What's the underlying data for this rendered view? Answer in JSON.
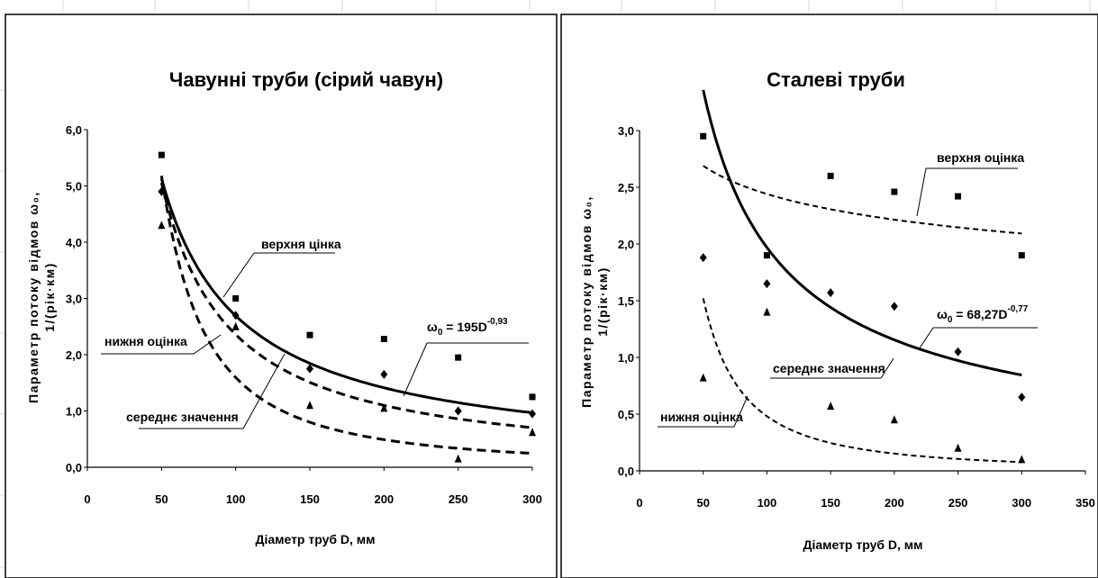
{
  "chart_data": [
    {
      "type": "scatter",
      "title": "Чавунні труби (сірий чавун)",
      "xlabel": "Діаметр труб D, мм",
      "ylabel": [
        "Параметр потоку відмов ω₀,",
        "1/(рік·км)"
      ],
      "xlim": [
        0,
        300
      ],
      "ylim": [
        0,
        6
      ],
      "xticks": [
        0,
        50,
        100,
        150,
        200,
        250,
        300
      ],
      "xtick_labels": [
        "0",
        "50",
        "100",
        "150",
        "200",
        "250",
        "300"
      ],
      "yticks": [
        0,
        1,
        2,
        3,
        4,
        5,
        6
      ],
      "ytick_labels": [
        "0,0",
        "1,0",
        "2,0",
        "3,0",
        "4,0",
        "5,0",
        "6,0"
      ],
      "grid": false,
      "legend": "none",
      "series": [
        {
          "marker": "square",
          "x": [
            50,
            100,
            150,
            200,
            250,
            300
          ],
          "y": [
            5.55,
            3.0,
            2.35,
            2.28,
            1.95,
            1.25
          ]
        },
        {
          "marker": "diamond",
          "x": [
            50,
            100,
            150,
            200,
            250,
            300
          ],
          "y": [
            4.9,
            2.7,
            1.75,
            1.65,
            1.0,
            0.95
          ]
        },
        {
          "marker": "triangle",
          "x": [
            50,
            100,
            150,
            200,
            250,
            300
          ],
          "y": [
            4.3,
            2.5,
            1.1,
            1.05,
            0.15,
            0.62
          ]
        }
      ],
      "curves": [
        {
          "style": "dashed",
          "a": 373.7,
          "b": -1.1,
          "xrange": [
            50,
            300
          ]
        },
        {
          "style": "solid",
          "a": 195,
          "b": -0.93,
          "xrange": [
            50,
            300
          ]
        },
        {
          "style": "dashed",
          "a": 4006,
          "b": -1.7,
          "xrange": [
            50,
            300
          ]
        }
      ],
      "annotations": {
        "upper": "верхня цінка",
        "lower": "нижня оцінка",
        "middle": "середнє значення",
        "formula_base": "ω",
        "formula_sub": "0",
        "formula_mid": " = 195D",
        "formula_exp": "-0,93"
      }
    },
    {
      "type": "scatter",
      "title": "Сталеві труби",
      "xlabel": "Діаметр труб D, мм",
      "ylabel": [
        "Параметр потоку відмов ω₀,",
        "1/(рік·км)"
      ],
      "xlim": [
        0,
        350
      ],
      "ylim": [
        0,
        3
      ],
      "xticks": [
        0,
        50,
        100,
        150,
        200,
        250,
        300,
        350
      ],
      "xtick_labels": [
        "0",
        "50",
        "100",
        "150",
        "200",
        "250",
        "300",
        "350"
      ],
      "yticks": [
        0,
        0.5,
        1,
        1.5,
        2,
        2.5,
        3
      ],
      "ytick_labels": [
        "0,0",
        "0,5",
        "1,0",
        "1,5",
        "2,0",
        "2,5",
        "3,0"
      ],
      "grid": false,
      "legend": "none",
      "series": [
        {
          "marker": "square",
          "x": [
            50,
            100,
            150,
            200,
            250,
            300
          ],
          "y": [
            2.95,
            1.9,
            2.6,
            2.46,
            2.42,
            1.9
          ]
        },
        {
          "marker": "diamond",
          "x": [
            50,
            100,
            150,
            200,
            250,
            300
          ],
          "y": [
            1.88,
            1.65,
            1.57,
            1.45,
            1.05,
            0.65
          ]
        },
        {
          "marker": "triangle",
          "x": [
            50,
            100,
            150,
            200,
            250,
            300
          ],
          "y": [
            0.82,
            1.4,
            0.57,
            0.45,
            0.2,
            0.1
          ]
        }
      ],
      "curves": [
        {
          "style": "dashed-fine",
          "a": 4.65,
          "b": -0.14,
          "xrange": [
            50,
            300
          ]
        },
        {
          "style": "solid",
          "a": 68.27,
          "b": -0.77,
          "xrange": [
            50,
            300
          ]
        },
        {
          "style": "dashed-fine",
          "a": 1006,
          "b": -1.66,
          "xrange": [
            50,
            300
          ]
        }
      ],
      "annotations": {
        "upper": "верхня оцінка",
        "lower": "нижня оцінка",
        "middle": "середнє значення",
        "formula_base": "ω",
        "formula_sub": "0",
        "formula_mid": " = 68,27D",
        "formula_exp": "-0,77"
      }
    }
  ]
}
